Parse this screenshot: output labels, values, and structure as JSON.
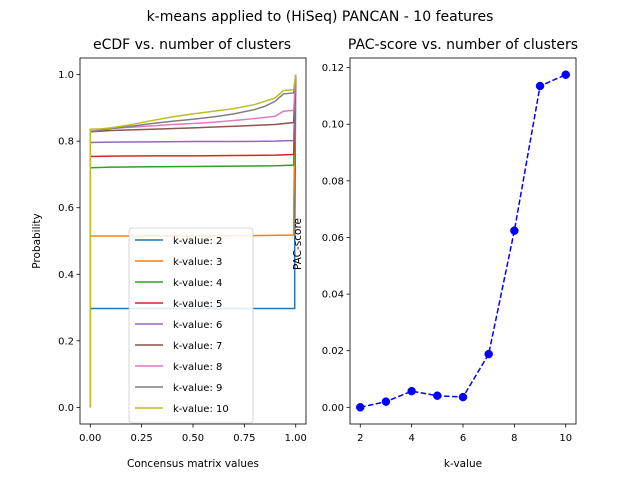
{
  "figure": {
    "title": "k-means applied to (HiSeq) PANCAN - 10 features"
  },
  "chart_data": [
    {
      "type": "line",
      "title": "eCDF vs. number of clusters",
      "xlabel": "Concensus matrix values",
      "ylabel": "Probability",
      "xlim": [
        -0.05,
        1.05
      ],
      "ylim": [
        -0.05,
        1.05
      ],
      "xticks": [
        "0.00",
        "0.25",
        "0.50",
        "0.75",
        "1.00"
      ],
      "yticks": [
        "0.0",
        "0.2",
        "0.4",
        "0.6",
        "0.8",
        "1.0"
      ],
      "grid": false,
      "legend_position": "lower center",
      "series": [
        {
          "name": "k-value: 2",
          "color": "#1f77b4",
          "x": [
            0,
            0,
            0.995,
            0.995,
            1.0
          ],
          "y": [
            0,
            0.297,
            0.297,
            0.5,
            1.0
          ]
        },
        {
          "name": "k-value: 3",
          "color": "#ff7f0e",
          "x": [
            0,
            0,
            0.2,
            0.5,
            0.8,
            0.99,
            0.99,
            1.0
          ],
          "y": [
            0,
            0.515,
            0.515,
            0.515,
            0.516,
            0.518,
            0.6,
            1.0
          ]
        },
        {
          "name": "k-value: 4",
          "color": "#2ca02c",
          "x": [
            0,
            0,
            0.1,
            0.3,
            0.5,
            0.7,
            0.9,
            0.99,
            1.0
          ],
          "y": [
            0,
            0.72,
            0.722,
            0.723,
            0.724,
            0.725,
            0.726,
            0.728,
            1.0
          ]
        },
        {
          "name": "k-value: 5",
          "color": "#d62728",
          "x": [
            0,
            0,
            0.1,
            0.3,
            0.5,
            0.7,
            0.9,
            0.99,
            1.0
          ],
          "y": [
            0,
            0.754,
            0.755,
            0.756,
            0.756,
            0.757,
            0.758,
            0.76,
            1.0
          ]
        },
        {
          "name": "k-value: 6",
          "color": "#9467bd",
          "x": [
            0,
            0,
            0.1,
            0.3,
            0.5,
            0.7,
            0.9,
            0.99,
            1.0
          ],
          "y": [
            0,
            0.796,
            0.797,
            0.798,
            0.799,
            0.799,
            0.8,
            0.802,
            1.0
          ]
        },
        {
          "name": "k-value: 7",
          "color": "#8c564b",
          "x": [
            0,
            0,
            0.1,
            0.3,
            0.5,
            0.7,
            0.9,
            0.99,
            1.0
          ],
          "y": [
            0,
            0.828,
            0.832,
            0.836,
            0.84,
            0.845,
            0.85,
            0.856,
            1.0
          ]
        },
        {
          "name": "k-value: 8",
          "color": "#e377c2",
          "x": [
            0,
            0,
            0.1,
            0.2,
            0.3,
            0.4,
            0.5,
            0.6,
            0.7,
            0.8,
            0.9,
            0.94,
            0.99,
            1.0
          ],
          "y": [
            0,
            0.83,
            0.838,
            0.842,
            0.846,
            0.85,
            0.853,
            0.857,
            0.862,
            0.868,
            0.875,
            0.89,
            0.893,
            1.0
          ]
        },
        {
          "name": "k-value: 9",
          "color": "#7f7f7f",
          "x": [
            0,
            0,
            0.05,
            0.1,
            0.2,
            0.3,
            0.4,
            0.5,
            0.6,
            0.7,
            0.8,
            0.85,
            0.9,
            0.94,
            0.99,
            1.0
          ],
          "y": [
            0,
            0.828,
            0.832,
            0.838,
            0.845,
            0.853,
            0.86,
            0.866,
            0.873,
            0.882,
            0.895,
            0.905,
            0.92,
            0.942,
            0.945,
            1.0
          ]
        },
        {
          "name": "k-value: 10",
          "color": "#bcbd22",
          "x": [
            0,
            0,
            0.05,
            0.1,
            0.2,
            0.3,
            0.4,
            0.5,
            0.6,
            0.7,
            0.8,
            0.9,
            0.94,
            0.99,
            1.0
          ],
          "y": [
            0,
            0.836,
            0.837,
            0.84,
            0.85,
            0.862,
            0.873,
            0.882,
            0.89,
            0.898,
            0.91,
            0.93,
            0.952,
            0.955,
            1.0
          ]
        }
      ]
    },
    {
      "type": "line",
      "title": "PAC-score vs. number of clusters",
      "xlabel": "k-value",
      "ylabel": "PAC-score",
      "xlim": [
        1.6,
        10.4
      ],
      "ylim": [
        -0.0059,
        0.1234
      ],
      "xticks": [
        "2",
        "4",
        "6",
        "8",
        "10"
      ],
      "yticks": [
        "0.00",
        "0.02",
        "0.04",
        "0.06",
        "0.08",
        "0.10",
        "0.12"
      ],
      "grid": false,
      "style": "dashed line with circle markers",
      "color": "#0000ff",
      "x": [
        2,
        3,
        4,
        5,
        6,
        7,
        8,
        9,
        10
      ],
      "y": [
        0.0,
        0.002,
        0.0057,
        0.0041,
        0.0036,
        0.0188,
        0.0624,
        0.1135,
        0.1175
      ]
    }
  ]
}
